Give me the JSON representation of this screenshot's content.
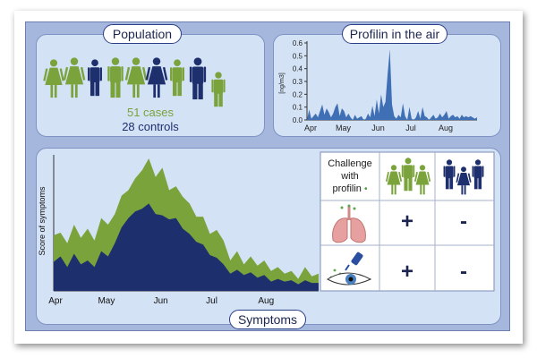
{
  "colors": {
    "case_green": "#7aa33c",
    "control_navy": "#1e2f6e",
    "air_blue": "#3f6fb5",
    "panel_bg": "#d4e2f6",
    "frame_bg": "#a6b7de"
  },
  "population": {
    "title": "Population",
    "cases": "51 cases",
    "controls": "28 controls",
    "people": [
      {
        "group": "case",
        "shape": "female"
      },
      {
        "group": "case",
        "shape": "female"
      },
      {
        "group": "control",
        "shape": "male"
      },
      {
        "group": "case",
        "shape": "male"
      },
      {
        "group": "case",
        "shape": "female"
      },
      {
        "group": "control",
        "shape": "female"
      },
      {
        "group": "case",
        "shape": "male"
      },
      {
        "group": "control",
        "shape": "male"
      },
      {
        "group": "case",
        "shape": "male"
      }
    ]
  },
  "air": {
    "title": "Profilin in the air",
    "chart_data": {
      "type": "area",
      "ylabel": "[ng/m3]",
      "xlabel": "",
      "yticks": [
        "0.0",
        "0.1",
        "0.2",
        "0.3",
        "0.4",
        "0.5",
        "0.6"
      ],
      "ylim": [
        0,
        0.6
      ],
      "xticks": [
        "Apr",
        "May",
        "Jun",
        "Jul",
        "Aug"
      ],
      "x": [
        0,
        2,
        4,
        6,
        8,
        10,
        12,
        14,
        16,
        18,
        20,
        22,
        24,
        26,
        28,
        30,
        32,
        34,
        36,
        38,
        40,
        42,
        44,
        46,
        48,
        50,
        52,
        54,
        56,
        58,
        60,
        62,
        64,
        66,
        68,
        70,
        72,
        74,
        76,
        78,
        80,
        82,
        84,
        86,
        88,
        90,
        92,
        94,
        96,
        98,
        100,
        102,
        104,
        106,
        108,
        110,
        112,
        114,
        116,
        118,
        120,
        122,
        124,
        126,
        128,
        130,
        132,
        134,
        136,
        138,
        140,
        142,
        144,
        146,
        148,
        150,
        152,
        154,
        156
      ],
      "values": [
        0,
        0.08,
        0.01,
        0.03,
        0.05,
        0.02,
        0.07,
        0.12,
        0.04,
        0.09,
        0.06,
        0.02,
        0.05,
        0.1,
        0.13,
        0.03,
        0.09,
        0.07,
        0.02,
        0.05,
        0.02,
        0,
        0.04,
        0.01,
        0.02,
        0.03,
        0,
        0.01,
        0.05,
        0.02,
        0.11,
        0.03,
        0.16,
        0.05,
        0.2,
        0.1,
        0.14,
        0.36,
        0.55,
        0.12,
        0.03,
        0.01,
        0.04,
        0.02,
        0.13,
        0.03,
        0,
        0.1,
        0.01,
        0,
        0.02,
        0.07,
        0.01,
        0.1,
        0.03,
        0.02,
        0,
        0.02,
        0.04,
        0.01,
        0.02,
        0.05,
        0.02,
        0.04,
        0.07,
        0.01,
        0.03,
        0.04,
        0.02,
        0.03,
        0.01,
        0.04,
        0.02,
        0.03,
        0.02,
        0.03,
        0.02,
        0.01,
        0.02
      ],
      "grid": false
    }
  },
  "symptoms": {
    "title": "Symptoms",
    "chart_data": {
      "type": "area",
      "ylabel": "Score of symptoms",
      "xlabel": "",
      "xticks": [
        "Apr",
        "May",
        "Jun",
        "Jul",
        "Aug"
      ],
      "ylim": [
        0,
        1
      ],
      "x": [
        0,
        4,
        8,
        12,
        16,
        20,
        24,
        28,
        32,
        36,
        40,
        44,
        48,
        52,
        56,
        60,
        64,
        68,
        72,
        76,
        80,
        84,
        88,
        92,
        96,
        100,
        104,
        108,
        112,
        116,
        120,
        124,
        128,
        132,
        136,
        140,
        144,
        148,
        152,
        156
      ],
      "series": [
        {
          "group": "case",
          "values": [
            0.42,
            0.44,
            0.36,
            0.5,
            0.4,
            0.47,
            0.38,
            0.55,
            0.5,
            0.58,
            0.72,
            0.76,
            0.85,
            0.91,
            1.0,
            0.86,
            0.93,
            0.76,
            0.79,
            0.71,
            0.66,
            0.56,
            0.56,
            0.43,
            0.46,
            0.38,
            0.23,
            0.3,
            0.2,
            0.26,
            0.19,
            0.23,
            0.15,
            0.18,
            0.13,
            0.15,
            0.09,
            0.18,
            0.11,
            0.13
          ]
        },
        {
          "group": "control",
          "values": [
            0.22,
            0.26,
            0.18,
            0.28,
            0.2,
            0.23,
            0.18,
            0.3,
            0.26,
            0.36,
            0.48,
            0.55,
            0.6,
            0.62,
            0.66,
            0.58,
            0.57,
            0.54,
            0.55,
            0.47,
            0.43,
            0.37,
            0.35,
            0.27,
            0.25,
            0.2,
            0.13,
            0.16,
            0.12,
            0.14,
            0.1,
            0.12,
            0.07,
            0.09,
            0.07,
            0.08,
            0.05,
            0.08,
            0.06,
            0.06
          ]
        }
      ]
    },
    "table": {
      "header": "Challenge with profilin",
      "header_lines": [
        "Challenge",
        "with",
        "profilin"
      ],
      "rows": [
        {
          "route": "lungs-icon",
          "cases": "+",
          "controls": "-"
        },
        {
          "route": "eye-drop-icon",
          "cases": "+",
          "controls": "-"
        }
      ]
    }
  }
}
